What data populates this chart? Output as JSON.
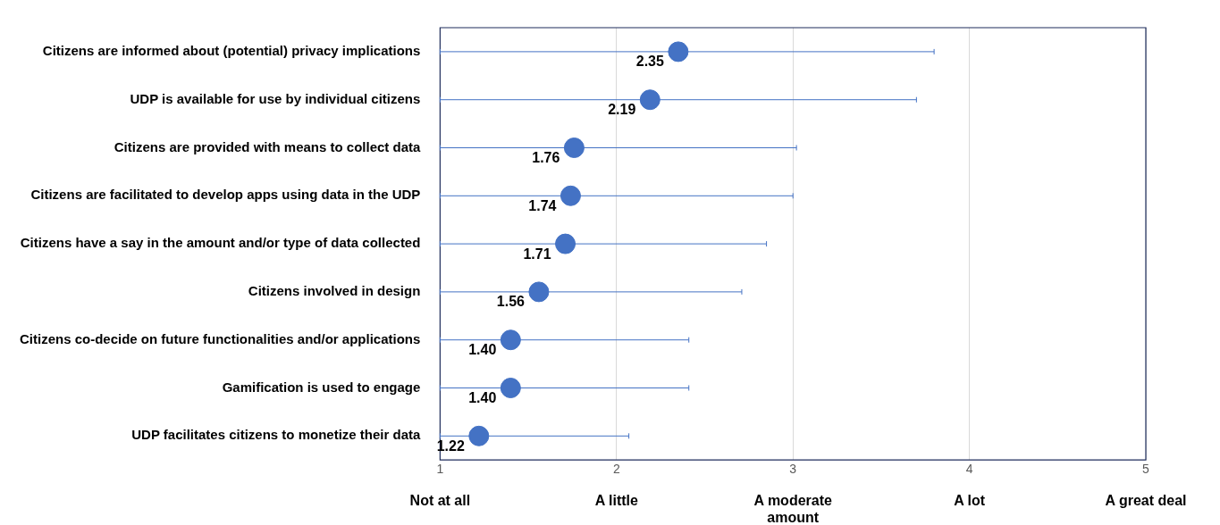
{
  "chart_data": {
    "type": "scatter",
    "orientation": "horizontal",
    "categories": [
      "Citizens are informed about (potential) privacy implications",
      "UDP is available for use by individual citizens",
      "Citizens are provided with means to collect data",
      "Citizens are facilitated to develop apps using data in the UDP",
      "Citizens have a say in the amount and/or type of data collected",
      "Citizens involved in design",
      "Citizens co-decide on future functionalities and/or applications",
      "Gamification is used to engage",
      "UDP facilitates citizens to monetize their data"
    ],
    "series": [
      {
        "color": "#4472c4",
        "values": [
          2.35,
          2.19,
          1.76,
          1.74,
          1.71,
          1.56,
          1.4,
          1.4,
          1.22
        ],
        "value_labels": [
          "2.35",
          "2.19",
          "1.76",
          "1.74",
          "1.71",
          "1.56",
          "1.40",
          "1.40",
          "1.22"
        ],
        "errors": [
          [
            1,
            3.8
          ],
          [
            1,
            3.7
          ],
          [
            1,
            3.02
          ],
          [
            1,
            3.0
          ],
          [
            1,
            2.85
          ],
          [
            1,
            2.71
          ],
          [
            1,
            2.41
          ],
          [
            1,
            2.41
          ],
          [
            1,
            2.07
          ]
        ]
      }
    ],
    "xlim": [
      1,
      5
    ],
    "xticks": [
      1,
      2,
      3,
      4,
      5
    ],
    "grid": "x",
    "marker": "circle",
    "legend": false,
    "annotations": [
      "Not at all",
      "A little",
      "A moderate amount",
      "A lot",
      "A great deal"
    ]
  }
}
